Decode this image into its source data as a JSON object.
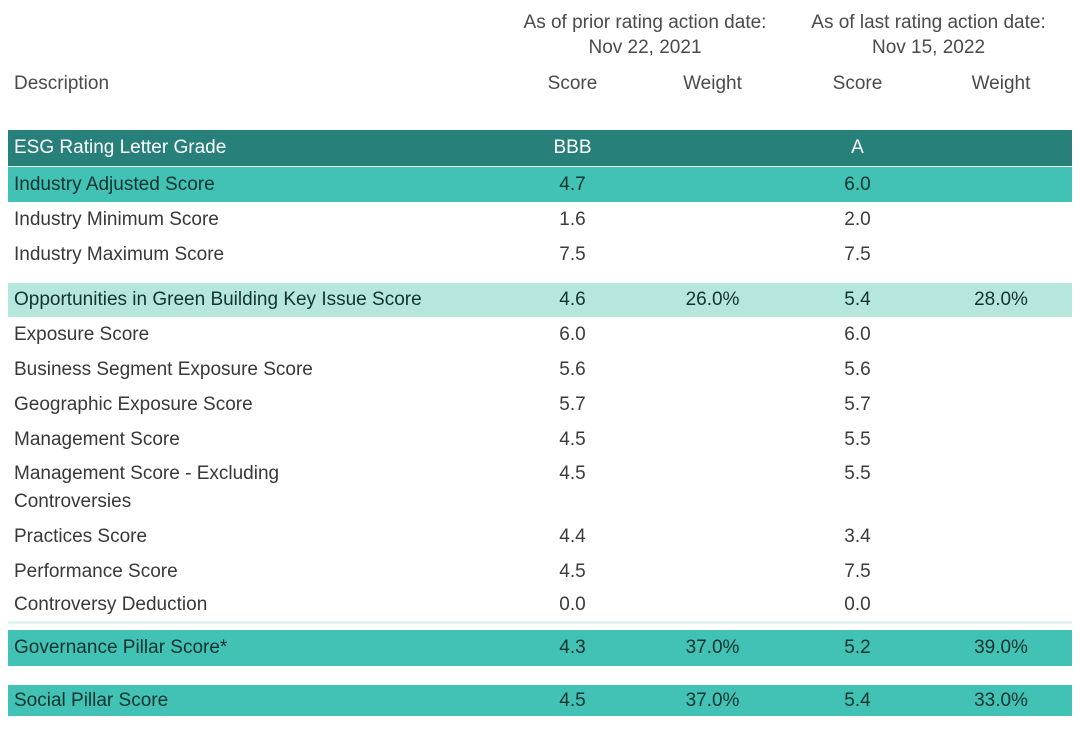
{
  "accent_colors": {
    "header_band": "#27807a",
    "highlight_band": "#41c2b5",
    "key_issue_band": "#b5e7de",
    "separator_line": "#e3f2f3",
    "text_on_dark_band": "#ffffff"
  },
  "header": {
    "description_label": "Description",
    "prior": {
      "caption": "As of prior rating action date:",
      "date": "Nov 22, 2021"
    },
    "last": {
      "caption": "As of last rating action date:",
      "date": "Nov 15, 2022"
    },
    "columns": [
      "Score",
      "Weight",
      "Score",
      "Weight"
    ]
  },
  "rows": [
    {
      "label": "ESG Rating Letter Grade",
      "score1": "BBB",
      "weight1": "",
      "score2": "A",
      "weight2": "",
      "band": "dark"
    },
    {
      "label": "Industry Adjusted Score",
      "score1": "4.7",
      "weight1": "",
      "score2": "6.0",
      "weight2": "",
      "band": "medium"
    },
    {
      "label": "Industry Minimum Score",
      "score1": "1.6",
      "weight1": "",
      "score2": "2.0",
      "weight2": "",
      "band": "none"
    },
    {
      "label": "Industry Maximum Score",
      "score1": "7.5",
      "weight1": "",
      "score2": "7.5",
      "weight2": "",
      "band": "none"
    },
    {
      "label": "Opportunities in Green Building Key Issue Score",
      "score1": "4.6",
      "weight1": "26.0%",
      "score2": "5.4",
      "weight2": "28.0%",
      "band": "light",
      "spacer_above": "small"
    },
    {
      "label": "Exposure Score",
      "score1": "6.0",
      "weight1": "",
      "score2": "6.0",
      "weight2": "",
      "band": "none"
    },
    {
      "label": "Business Segment Exposure Score",
      "score1": "5.6",
      "weight1": "",
      "score2": "5.6",
      "weight2": "",
      "band": "none"
    },
    {
      "label": "Geographic Exposure Score",
      "score1": "5.7",
      "weight1": "",
      "score2": "5.7",
      "weight2": "",
      "band": "none"
    },
    {
      "label": "Management Score",
      "score1": "4.5",
      "weight1": "",
      "score2": "5.5",
      "weight2": "",
      "band": "none"
    },
    {
      "label": "Management Score - Excluding\nControversies",
      "score1": "4.5",
      "weight1": "",
      "score2": "5.5",
      "weight2": "",
      "band": "none"
    },
    {
      "label": "Practices Score",
      "score1": "4.4",
      "weight1": "",
      "score2": "3.4",
      "weight2": "",
      "band": "none"
    },
    {
      "label": "Performance Score",
      "score1": "4.5",
      "weight1": "",
      "score2": "7.5",
      "weight2": "",
      "band": "none"
    },
    {
      "label": "Controversy Deduction",
      "score1": "0.0",
      "weight1": "",
      "score2": "0.0",
      "weight2": "",
      "band": "none",
      "divider_below": true
    },
    {
      "label": "Governance Pillar Score*",
      "score1": "4.3",
      "weight1": "37.0%",
      "score2": "5.2",
      "weight2": "39.0%",
      "band": "medium",
      "tall": true,
      "spacer_above": "tiny"
    },
    {
      "label": "Social Pillar Score",
      "score1": "4.5",
      "weight1": "37.0%",
      "score2": "5.4",
      "weight2": "33.0%",
      "band": "medium",
      "short": true,
      "spacer_above": "large"
    }
  ]
}
